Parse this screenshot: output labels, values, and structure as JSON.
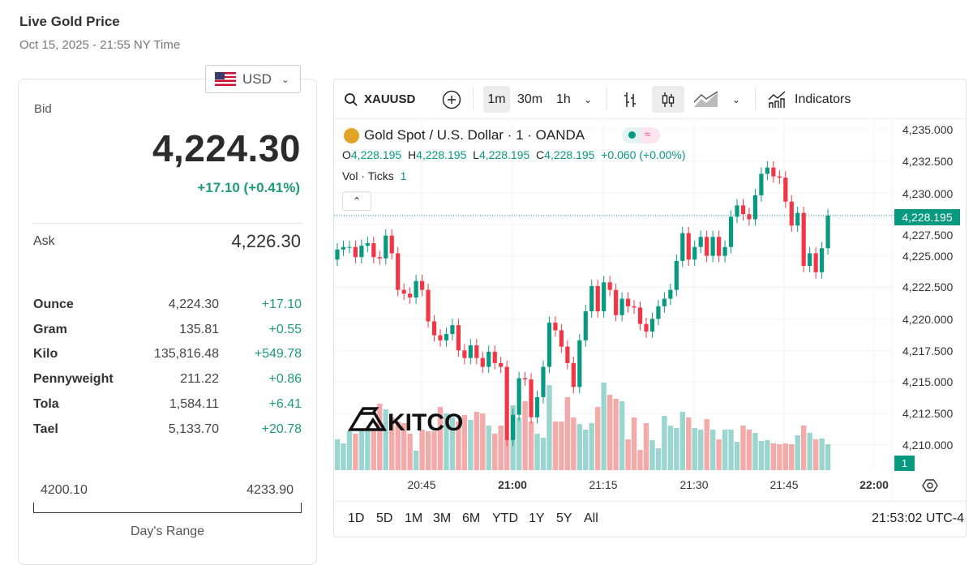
{
  "header": {
    "title": "Live Gold Price",
    "date": "Oct 15, 2025 - 21:55 NY Time"
  },
  "currency": {
    "selected": "USD",
    "icon": "us-flag-icon"
  },
  "quote": {
    "bid_label": "Bid",
    "bid": "4,224.30",
    "change": "+17.10 (+0.41%)",
    "ask_label": "Ask",
    "ask": "4,226.30"
  },
  "units": [
    {
      "name": "Ounce",
      "price": "4,224.30",
      "change": "+17.10"
    },
    {
      "name": "Gram",
      "price": "135.81",
      "change": "+0.55"
    },
    {
      "name": "Kilo",
      "price": "135,816.48",
      "change": "+549.78"
    },
    {
      "name": "Pennyweight",
      "price": "211.22",
      "change": "+0.86"
    },
    {
      "name": "Tola",
      "price": "1,584.11",
      "change": "+6.41"
    },
    {
      "name": "Tael",
      "price": "5,133.70",
      "change": "+20.78"
    }
  ],
  "range": {
    "low": "4200.10",
    "high": "4233.90",
    "label": "Day's Range"
  },
  "toolbar": {
    "symbol": "XAUUSD",
    "intervals": [
      "1m",
      "30m",
      "1h"
    ],
    "selected_interval": "1m",
    "indicators": "Indicators"
  },
  "legend": {
    "title": "Gold Spot / U.S. Dollar · 1 · OANDA",
    "o_label": "O",
    "o": "4,228.195",
    "h_label": "H",
    "h": "4,228.195",
    "l_label": "L",
    "l": "4,228.195",
    "c_label": "C",
    "c": "4,228.195",
    "chg": "+0.060 (+0.00%)",
    "vol_label": "Vol · Ticks",
    "vol_value": "1",
    "pill_wave": "≈"
  },
  "price_axis": [
    "4,235.000",
    "4,232.500",
    "4,230.000",
    "4,227.500",
    "4,225.000",
    "4,222.500",
    "4,220.000",
    "4,217.500",
    "4,215.000",
    "4,212.500",
    "4,210.000"
  ],
  "last_price": "4,228.195",
  "volume_badge": "1",
  "time_axis": [
    "20:45",
    "21:00",
    "21:15",
    "21:30",
    "21:45",
    "22:00"
  ],
  "ranges": [
    "1D",
    "5D",
    "1M",
    "3M",
    "6M",
    "YTD",
    "1Y",
    "5Y",
    "All"
  ],
  "clock": "21:53:02 UTC-4",
  "watermark": "KITCO",
  "colors": {
    "up": "#089981",
    "down": "#f23645",
    "vol_up": "#9ad5cf",
    "vol_down": "#f5aaaa",
    "change": "#1f9a7a"
  },
  "chart_data": {
    "type": "candlestick",
    "interval": "1m",
    "first_time": "20:31",
    "ylim": [
      4208.5,
      4235.5
    ],
    "closes": [
      4225.5,
      4225.7,
      4225.7,
      4224.9,
      4225.8,
      4226.0,
      4224.9,
      4224.8,
      4226.6,
      4225.2,
      4222.3,
      4222.0,
      4221.7,
      4223.0,
      4222.3,
      4219.8,
      4218.7,
      4218.3,
      4218.8,
      4219.5,
      4217.5,
      4216.9,
      4217.9,
      4216.9,
      4216.2,
      4217.4,
      4216.5,
      4216.2,
      4210.4,
      4212.4,
      4215.3,
      4215.2,
      4212.2,
      4213.8,
      4216.2,
      4219.7,
      4219.1,
      4217.8,
      4216.5,
      4214.6,
      4218.3,
      4220.6,
      4222.6,
      4220.6,
      4222.9,
      4222.3,
      4220.3,
      4221.6,
      4221.0,
      4220.9,
      4219.6,
      4219.0,
      4220.0,
      4221.0,
      4221.6,
      4222.3,
      4224.6,
      4226.8,
      4224.7,
      4225.7,
      4226.5,
      4225.0,
      4226.5,
      4225.0,
      4225.7,
      4228.1,
      4229.0,
      4228.3,
      4227.9,
      4229.8,
      4231.5,
      4232.0,
      4231.3,
      4231.2,
      4229.3,
      4227.4,
      4228.4,
      4224.2,
      4225.2,
      4223.7,
      4225.6,
      4228.195
    ],
    "volumes": [
      38,
      33,
      48,
      45,
      50,
      52,
      50,
      82,
      75,
      65,
      60,
      58,
      45,
      24,
      50,
      48,
      48,
      78,
      70,
      65,
      60,
      68,
      62,
      72,
      70,
      55,
      45,
      55,
      38,
      80,
      65,
      85,
      60,
      45,
      40,
      105,
      60,
      60,
      90,
      65,
      57,
      50,
      58,
      78,
      108,
      93,
      88,
      85,
      38,
      65,
      25,
      58,
      37,
      27,
      67,
      55,
      52,
      72,
      65,
      52,
      50,
      63,
      50,
      38,
      50,
      50,
      35,
      55,
      50,
      46,
      36,
      37,
      33,
      32,
      33,
      32,
      43,
      55,
      46,
      38,
      39,
      32
    ]
  }
}
